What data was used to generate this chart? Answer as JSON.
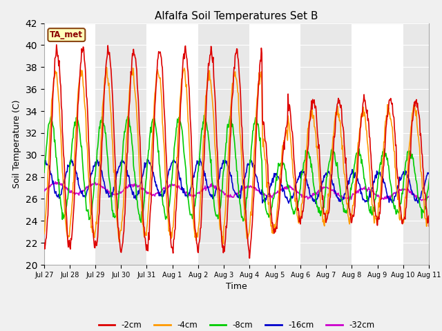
{
  "title": "Alfalfa Soil Temperatures Set B",
  "xlabel": "Time",
  "ylabel": "Soil Temperature (C)",
  "ylim": [
    20,
    42
  ],
  "yticks": [
    20,
    22,
    24,
    26,
    28,
    30,
    32,
    34,
    36,
    38,
    40,
    42
  ],
  "series": {
    "-2cm": {
      "color": "#dd0000",
      "lw": 1.2
    },
    "-4cm": {
      "color": "#ff9900",
      "lw": 1.2
    },
    "-8cm": {
      "color": "#00cc00",
      "lw": 1.2
    },
    "-16cm": {
      "color": "#0000cc",
      "lw": 1.2
    },
    "-32cm": {
      "color": "#cc00cc",
      "lw": 1.2
    }
  },
  "legend_label": "TA_met",
  "plot_bg_color": "#e8e8e8",
  "stripe_color": "#d0d0d0",
  "grid_color": "#ffffff",
  "fig_bg_color": "#f0f0f0",
  "n_days": 16,
  "points_per_day": 48
}
